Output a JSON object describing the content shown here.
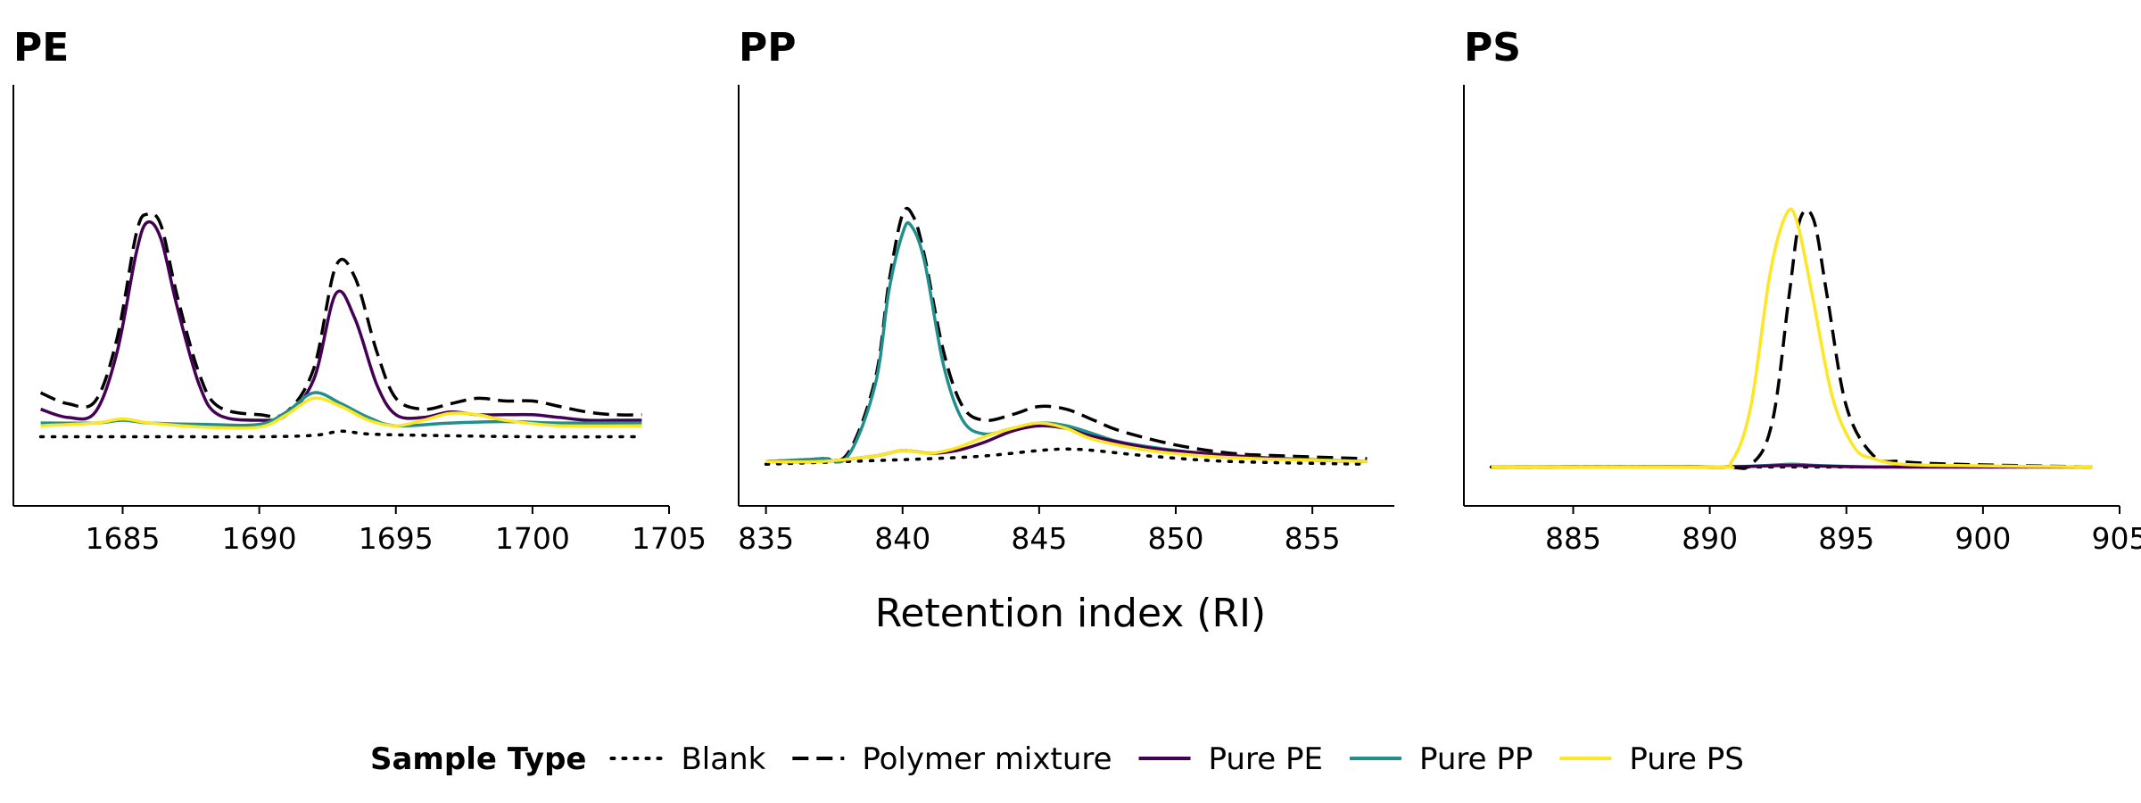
{
  "chart_data": {
    "type": "line",
    "xlabel": "Retention index (RI)",
    "ylabel": "",
    "legend": {
      "title": "Sample Type",
      "placement": "bottom",
      "entries": [
        "Blank",
        "Polymer mixture",
        "Pure PE",
        "Pure PP",
        "Pure PS"
      ]
    },
    "series_styles": [
      {
        "name": "Blank",
        "color": "#000000",
        "dash": "dotted"
      },
      {
        "name": "Polymer mixture",
        "color": "#000000",
        "dash": "dashed"
      },
      {
        "name": "Pure PE",
        "color": "#440154",
        "dash": "solid"
      },
      {
        "name": "Pure PP",
        "color": "#21908C",
        "dash": "solid"
      },
      {
        "name": "Pure PS",
        "color": "#FDE725",
        "dash": "solid"
      }
    ],
    "y_range": [
      0,
      1
    ],
    "grid": false,
    "panels": [
      {
        "title": "PE",
        "xlim": [
          1681,
          1705
        ],
        "xticks": [
          "1685",
          "1690",
          "1695",
          "1700",
          "1705"
        ],
        "series": [
          {
            "name": "Blank",
            "x": [
              1682,
              1686,
              1690,
              1692,
              1693,
              1694,
              1696,
              1700,
              1704
            ],
            "y": [
              0.19,
              0.19,
              0.19,
              0.195,
              0.21,
              0.2,
              0.195,
              0.19,
              0.19
            ]
          },
          {
            "name": "Polymer mixture",
            "x": [
              1682,
              1683,
              1684,
              1684.8,
              1685.5,
              1685.9,
              1686.4,
              1687,
              1687.8,
              1688.5,
              1690,
              1691,
              1692,
              1692.8,
              1693.5,
              1694.3,
              1695,
              1696,
              1697,
              1698,
              1699,
              1700,
              1701,
              1702,
              1703,
              1704
            ],
            "y": [
              0.35,
              0.31,
              0.32,
              0.55,
              0.93,
              1.0,
              0.96,
              0.7,
              0.42,
              0.3,
              0.27,
              0.28,
              0.44,
              0.81,
              0.77,
              0.5,
              0.33,
              0.29,
              0.31,
              0.33,
              0.32,
              0.32,
              0.3,
              0.28,
              0.27,
              0.27
            ]
          },
          {
            "name": "Pure PE",
            "x": [
              1682,
              1683,
              1684,
              1684.8,
              1685.5,
              1685.9,
              1686.4,
              1687,
              1687.8,
              1688.5,
              1690,
              1691,
              1692,
              1692.8,
              1693.5,
              1694.3,
              1695,
              1696,
              1697,
              1698,
              1699,
              1700,
              1701,
              1702,
              1703,
              1704
            ],
            "y": [
              0.29,
              0.26,
              0.28,
              0.5,
              0.86,
              0.97,
              0.91,
              0.66,
              0.38,
              0.27,
              0.25,
              0.27,
              0.4,
              0.71,
              0.62,
              0.38,
              0.27,
              0.26,
              0.28,
              0.27,
              0.27,
              0.27,
              0.26,
              0.25,
              0.25,
              0.25
            ]
          },
          {
            "name": "Pure PP",
            "x": [
              1682,
              1684,
              1685,
              1686,
              1688,
              1690,
              1691,
              1692,
              1693,
              1694,
              1695,
              1697,
              1699,
              1701,
              1704
            ],
            "y": [
              0.24,
              0.24,
              0.25,
              0.24,
              0.235,
              0.235,
              0.28,
              0.35,
              0.31,
              0.26,
              0.23,
              0.24,
              0.245,
              0.24,
              0.24
            ]
          },
          {
            "name": "Pure PS",
            "x": [
              1682,
              1684,
              1685,
              1686,
              1688,
              1690,
              1691,
              1692,
              1693,
              1694,
              1695,
              1696,
              1697,
              1698,
              1699,
              1701,
              1704
            ],
            "y": [
              0.23,
              0.24,
              0.255,
              0.24,
              0.225,
              0.225,
              0.27,
              0.33,
              0.3,
              0.25,
              0.23,
              0.25,
              0.275,
              0.27,
              0.25,
              0.23,
              0.23
            ]
          }
        ]
      },
      {
        "title": "PP",
        "xlim": [
          834,
          858
        ],
        "xticks": [
          "835",
          "840",
          "845",
          "850",
          "855"
        ],
        "series": [
          {
            "name": "Blank",
            "x": [
              835,
              838,
              841,
              843,
              845,
              846,
              847,
              849,
              852,
              857
            ],
            "y": [
              0.09,
              0.1,
              0.11,
              0.12,
              0.14,
              0.145,
              0.14,
              0.12,
              0.1,
              0.09
            ]
          },
          {
            "name": "Polymer mixture",
            "x": [
              835,
              837,
              838,
              839,
              839.5,
              840,
              840.4,
              840.8,
              841.5,
              842.2,
              843,
              844,
              845,
              846,
              847,
              848,
              850,
              852,
              854,
              857
            ],
            "y": [
              0.1,
              0.11,
              0.13,
              0.4,
              0.75,
              1.0,
              0.99,
              0.85,
              0.5,
              0.3,
              0.25,
              0.27,
              0.3,
              0.29,
              0.25,
              0.21,
              0.16,
              0.13,
              0.12,
              0.11
            ]
          },
          {
            "name": "Pure PP",
            "x": [
              835,
              837,
              838,
              839,
              839.5,
              840,
              840.3,
              840.8,
              841.5,
              842.2,
              843,
              844,
              845,
              846,
              847,
              848,
              850,
              852,
              854,
              857
            ],
            "y": [
              0.1,
              0.11,
              0.12,
              0.38,
              0.72,
              0.93,
              0.96,
              0.83,
              0.45,
              0.25,
              0.2,
              0.22,
              0.24,
              0.23,
              0.2,
              0.17,
              0.14,
              0.12,
              0.11,
              0.1
            ]
          },
          {
            "name": "Pure PE",
            "x": [
              835,
              837,
              839,
              840,
              841,
              842,
              843,
              844,
              845,
              846,
              847,
              849,
              851,
              853,
              855,
              857
            ],
            "y": [
              0.1,
              0.1,
              0.12,
              0.14,
              0.13,
              0.14,
              0.17,
              0.21,
              0.23,
              0.22,
              0.19,
              0.15,
              0.13,
              0.115,
              0.105,
              0.1
            ]
          },
          {
            "name": "Pure PS",
            "x": [
              835,
              837,
              839,
              840,
              841,
              842,
              843,
              844,
              845,
              846,
              847,
              849,
              851,
              853,
              855,
              857
            ],
            "y": [
              0.1,
              0.1,
              0.12,
              0.14,
              0.13,
              0.15,
              0.19,
              0.22,
              0.24,
              0.22,
              0.18,
              0.14,
              0.12,
              0.11,
              0.105,
              0.1
            ]
          }
        ]
      },
      {
        "title": "PS",
        "xlim": [
          881,
          905
        ],
        "xticks": [
          "885",
          "890",
          "895",
          "900",
          "905"
        ],
        "series": [
          {
            "name": "Blank",
            "x": [
              882,
              890,
              895,
              900,
              904
            ],
            "y": [
              0.08,
              0.08,
              0.08,
              0.08,
              0.08
            ]
          },
          {
            "name": "Pure PP",
            "x": [
              882,
              890,
              892,
              893,
              894,
              896,
              899,
              904
            ],
            "y": [
              0.08,
              0.08,
              0.085,
              0.09,
              0.085,
              0.08,
              0.08,
              0.08
            ]
          },
          {
            "name": "Pure PE",
            "x": [
              882,
              890,
              893,
              896,
              904
            ],
            "y": [
              0.08,
              0.08,
              0.085,
              0.08,
              0.08
            ]
          },
          {
            "name": "Polymer mixture",
            "x": [
              882,
              890,
              891.5,
              892.3,
              892.9,
              893.3,
              893.8,
              894.3,
              895,
              896,
              897,
              899,
              904
            ],
            "y": [
              0.08,
              0.08,
              0.09,
              0.25,
              0.7,
              0.98,
              0.98,
              0.7,
              0.3,
              0.12,
              0.1,
              0.09,
              0.08
            ]
          },
          {
            "name": "Pure PS",
            "x": [
              882,
              890,
              890.8,
              891.5,
              892.2,
              892.8,
              893.2,
              893.8,
              894.5,
              895.3,
              896,
              897,
              899,
              904
            ],
            "y": [
              0.08,
              0.08,
              0.1,
              0.3,
              0.78,
              1.0,
              0.97,
              0.68,
              0.33,
              0.15,
              0.11,
              0.09,
              0.085,
              0.08
            ]
          }
        ]
      }
    ]
  }
}
